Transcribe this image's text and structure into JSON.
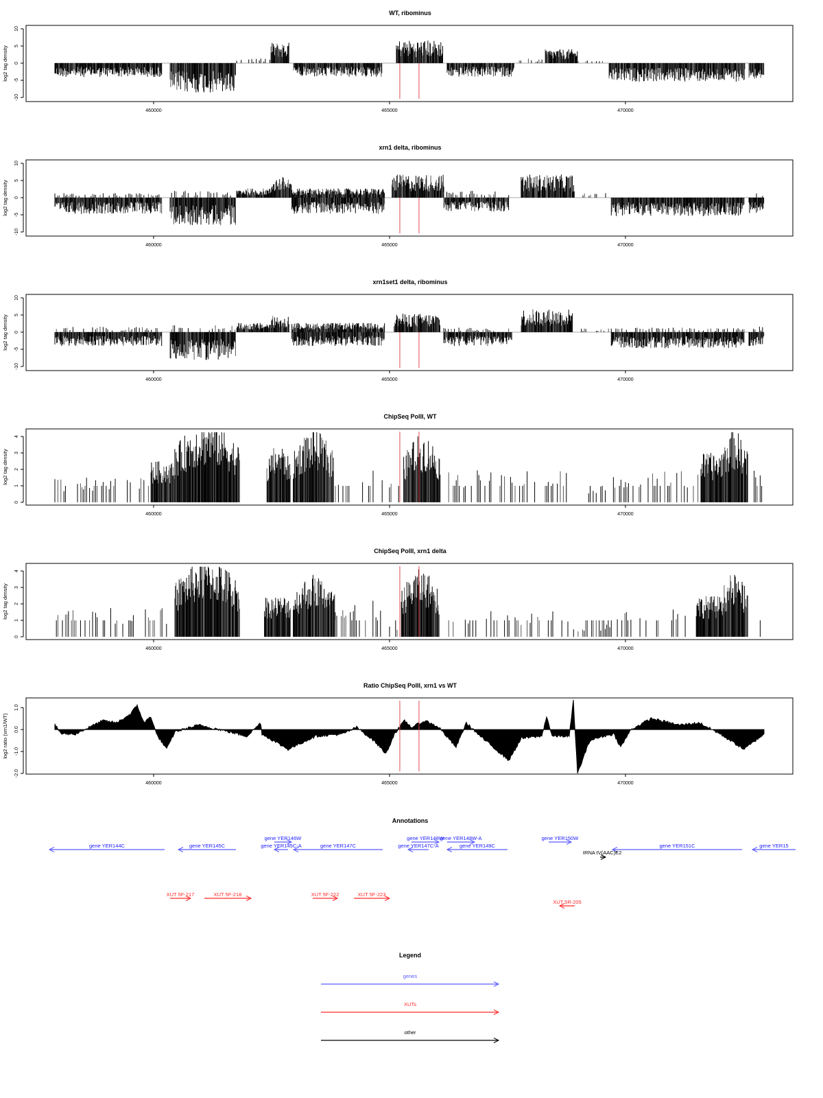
{
  "chart_data": {
    "type": "genome-browser-tracks",
    "xaxis": {
      "xlim": [
        457297,
        473547
      ],
      "ticks": [
        460000,
        465000,
        470000
      ],
      "tick_labels": [
        "460000",
        "465000",
        "470000"
      ]
    },
    "highlight_lines": {
      "positions": [
        465218,
        465625
      ],
      "color": "#e8474c"
    },
    "tracks": [
      {
        "id": "t1",
        "kind": "stranded",
        "title": "WT, ribominus",
        "ylabel": "log2 tag density",
        "ylim": [
          -11.2,
          11
        ],
        "yticks": [
          10,
          5,
          0,
          -5,
          -10
        ],
        "ytick_labels": [
          "10",
          "5",
          "0",
          "-5",
          "-10"
        ],
        "segments": [
          [
            457907,
            460175,
            -3
          ],
          [
            460349,
            461745,
            -6.5
          ],
          [
            461760,
            462485,
            1
          ],
          [
            462486,
            462878,
            4.5
          ],
          [
            462965,
            464840,
            -3
          ],
          [
            465146,
            466134,
            5
          ],
          [
            466221,
            467646,
            -3
          ],
          [
            467718,
            468300,
            1
          ],
          [
            468300,
            468983,
            3
          ],
          [
            469000,
            469600,
            0.8
          ],
          [
            469651,
            472529,
            -4
          ],
          [
            472617,
            472936,
            -3.5
          ]
        ]
      },
      {
        "id": "t2",
        "kind": "stranded",
        "title": "xrn1 delta, ribominus",
        "ylabel": "log2 tag density",
        "ylim": [
          -11.2,
          11
        ],
        "yticks": [
          10,
          5,
          0,
          -5,
          -10
        ],
        "ytick_labels": [
          "10",
          "5",
          "0",
          "-5",
          "-10"
        ],
        "segments": [
          [
            457907,
            460175,
            -3.5
          ],
          [
            457907,
            460175,
            1
          ],
          [
            460349,
            461745,
            -6
          ],
          [
            460349,
            461745,
            1.5
          ],
          [
            461760,
            462500,
            2
          ],
          [
            462500,
            462930,
            4.5
          ],
          [
            462930,
            464900,
            -3.5
          ],
          [
            462930,
            464900,
            2
          ],
          [
            465050,
            466150,
            5
          ],
          [
            466150,
            467530,
            -3
          ],
          [
            466150,
            467530,
            1.5
          ],
          [
            467790,
            468920,
            5
          ],
          [
            469100,
            469650,
            1
          ],
          [
            469700,
            472520,
            -4
          ],
          [
            472617,
            472936,
            -3.5
          ],
          [
            472617,
            472936,
            1
          ]
        ]
      },
      {
        "id": "t3",
        "kind": "stranded",
        "title": "xrn1set1 delta, ribominus",
        "ylabel": "log2 tag density",
        "ylim": [
          -11.2,
          11
        ],
        "yticks": [
          10,
          5,
          0,
          -5,
          -10
        ],
        "ytick_labels": [
          "10",
          "5",
          "0",
          "-5",
          "-10"
        ],
        "segments": [
          [
            457907,
            460175,
            -3
          ],
          [
            457907,
            460175,
            1.2
          ],
          [
            460349,
            461745,
            -6
          ],
          [
            460349,
            461745,
            1.5
          ],
          [
            461760,
            462500,
            2
          ],
          [
            462500,
            462870,
            3.5
          ],
          [
            462930,
            464900,
            -3
          ],
          [
            462930,
            464900,
            2
          ],
          [
            465100,
            466080,
            4
          ],
          [
            466150,
            467600,
            -3
          ],
          [
            466150,
            467600,
            1
          ],
          [
            467790,
            468880,
            5
          ],
          [
            469000,
            469650,
            0.8
          ],
          [
            469700,
            472520,
            -3.5
          ],
          [
            469700,
            472520,
            1
          ],
          [
            472617,
            472936,
            -3
          ],
          [
            472617,
            472936,
            1.2
          ]
        ]
      },
      {
        "id": "t4",
        "kind": "chip",
        "title": "ChipSeq PolII, WT",
        "ylabel": "log2 tag density",
        "ylim": [
          -0.17,
          4.46
        ],
        "yticks": [
          0,
          1,
          2,
          3,
          4
        ],
        "ytick_labels": [
          "0",
          "1",
          "2",
          "3",
          "4"
        ],
        "segments": [
          [
            457907,
            459942,
            1.2
          ],
          [
            459942,
            460450,
            2
          ],
          [
            460450,
            461830,
            3.6
          ],
          [
            462400,
            462900,
            2.6
          ],
          [
            462960,
            463820,
            3.2
          ],
          [
            463820,
            464870,
            1.6
          ],
          [
            465000,
            465200,
            1
          ],
          [
            465300,
            466080,
            3
          ],
          [
            466221,
            468809,
            1.6
          ],
          [
            468900,
            469600,
            0.8
          ],
          [
            469680,
            471600,
            1.6
          ],
          [
            471600,
            472000,
            2.4
          ],
          [
            472000,
            472600,
            3.2
          ],
          [
            472600,
            472936,
            1.6
          ]
        ]
      },
      {
        "id": "t5",
        "kind": "chip",
        "title": "ChipSeq PolII, xrn1 delta",
        "ylabel": "log2 tag density",
        "ylim": [
          -0.17,
          4.46
        ],
        "yticks": [
          0,
          1,
          2,
          3,
          4
        ],
        "ytick_labels": [
          "0",
          "1",
          "2",
          "3",
          "4"
        ],
        "segments": [
          [
            457907,
            460300,
            1.4
          ],
          [
            460450,
            461830,
            3.5
          ],
          [
            462350,
            462900,
            2
          ],
          [
            462960,
            463850,
            2.8
          ],
          [
            463850,
            464870,
            1.8
          ],
          [
            465000,
            465200,
            0.6
          ],
          [
            465250,
            466060,
            3
          ],
          [
            466221,
            468200,
            1.3
          ],
          [
            468300,
            468800,
            1.6
          ],
          [
            468900,
            469700,
            0.6
          ],
          [
            469700,
            471500,
            1.4
          ],
          [
            471500,
            472000,
            2
          ],
          [
            472000,
            472600,
            2.8
          ],
          [
            472600,
            472936,
            1.5
          ]
        ]
      },
      {
        "id": "t6",
        "kind": "ratio",
        "title": "Ratio ChipSeq PolII, xrn1 vs WT",
        "ylabel": "log2 ratio (xrn1/WT)",
        "ylim": [
          -2.03,
          1.44
        ],
        "yticks": [
          1,
          0,
          -1,
          -2
        ],
        "ytick_labels": [
          "1.0",
          "0.0",
          "-1.0",
          "-2.0"
        ],
        "points": [
          [
            457907,
            0.2
          ],
          [
            458053,
            -0.2
          ],
          [
            458343,
            -0.2
          ],
          [
            458634,
            0.1
          ],
          [
            458925,
            0.4
          ],
          [
            459216,
            0.3
          ],
          [
            459506,
            0.7
          ],
          [
            459652,
            1.1
          ],
          [
            459797,
            0.3
          ],
          [
            459942,
            0.6
          ],
          [
            460059,
            -0.2
          ],
          [
            460277,
            -0.9
          ],
          [
            460451,
            -0.1
          ],
          [
            460960,
            0.2
          ],
          [
            461396,
            0.0
          ],
          [
            461977,
            -0.3
          ],
          [
            462268,
            0.3
          ],
          [
            462297,
            -0.2
          ],
          [
            462849,
            -0.9
          ],
          [
            463431,
            -0.3
          ],
          [
            464012,
            -0.2
          ],
          [
            464303,
            0.1
          ],
          [
            464666,
            -0.5
          ],
          [
            464928,
            -1.1
          ],
          [
            465102,
            -0.2
          ],
          [
            465320,
            0.4
          ],
          [
            465466,
            0.1
          ],
          [
            465756,
            0.4
          ],
          [
            466047,
            0.1
          ],
          [
            466410,
            -0.8
          ],
          [
            466628,
            0.3
          ],
          [
            466919,
            -0.3
          ],
          [
            467530,
            -1.4
          ],
          [
            467791,
            -0.4
          ],
          [
            468227,
            -0.3
          ],
          [
            468329,
            0.6
          ],
          [
            468445,
            -0.3
          ],
          [
            468809,
            -0.3
          ],
          [
            468896,
            1.3
          ],
          [
            468984,
            -2.0
          ],
          [
            469245,
            -0.5
          ],
          [
            469536,
            -0.3
          ],
          [
            469754,
            -0.2
          ],
          [
            469899,
            -0.8
          ],
          [
            470117,
            0.0
          ],
          [
            470553,
            0.5
          ],
          [
            471134,
            0.2
          ],
          [
            471570,
            0.3
          ],
          [
            472006,
            -0.2
          ],
          [
            472515,
            -0.9
          ],
          [
            472936,
            -0.2
          ]
        ]
      }
    ],
    "annotations": {
      "title": "Annotations",
      "features": [
        {
          "label": "gene YER144C",
          "start": 457791,
          "end": 460233,
          "strand": "-",
          "type": "gene",
          "row": 2
        },
        {
          "label": "gene YER145C",
          "start": 460524,
          "end": 461745,
          "strand": "-",
          "type": "gene",
          "row": 2
        },
        {
          "label": "gene YER146W",
          "start": 462559,
          "end": 462922,
          "strand": "+",
          "type": "gene",
          "row": 1
        },
        {
          "label": "gene YER145C-A",
          "start": 462559,
          "end": 462849,
          "strand": "-",
          "type": "gene",
          "row": 2
        },
        {
          "label": "gene YER147C",
          "start": 462966,
          "end": 464855,
          "strand": "-",
          "type": "gene",
          "row": 2
        },
        {
          "label": "gene YER147C-A",
          "start": 465393,
          "end": 465829,
          "strand": "-",
          "type": "gene",
          "row": 2
        },
        {
          "label": "gene YER148W",
          "start": 465466,
          "end": 466047,
          "strand": "+",
          "type": "gene",
          "row": 1
        },
        {
          "label": "gene YER148W-A",
          "start": 466221,
          "end": 466802,
          "strand": "+",
          "type": "gene",
          "row": 1
        },
        {
          "label": "gene YER149C",
          "start": 466221,
          "end": 467500,
          "strand": "-",
          "type": "gene",
          "row": 2
        },
        {
          "label": "gene YER150W",
          "start": 468372,
          "end": 468852,
          "strand": "+",
          "type": "gene",
          "row": 1
        },
        {
          "label": "gene YER151C",
          "start": 469724,
          "end": 472472,
          "strand": "-",
          "type": "gene",
          "row": 2
        },
        {
          "label": "gene YER15",
          "start": 472690,
          "end": 473605,
          "strand": "-",
          "type": "gene",
          "row": 2
        },
        {
          "label": "tRNA tV(AAC)E2",
          "start": 469463,
          "end": 469579,
          "strand": "+",
          "type": "other",
          "row": 3
        },
        {
          "label": "XUT 5F-217",
          "start": 460349,
          "end": 460785,
          "strand": "+",
          "type": "xut",
          "row": 5
        },
        {
          "label": "XUT 5F-218",
          "start": 461075,
          "end": 462065,
          "strand": "+",
          "type": "xut",
          "row": 5
        },
        {
          "label": "XUT 5F-222",
          "start": 463373,
          "end": 463896,
          "strand": "+",
          "type": "xut",
          "row": 5
        },
        {
          "label": "XUT 5F-223",
          "start": 464245,
          "end": 465001,
          "strand": "+",
          "type": "xut",
          "row": 5
        },
        {
          "label": "XUT 5R-205",
          "start": 468605,
          "end": 468925,
          "strand": "-",
          "type": "xut",
          "row": 6
        }
      ]
    },
    "legend": {
      "title": "Legend",
      "entries": [
        {
          "label": "genes",
          "color": "#5a5aff"
        },
        {
          "label": "XUTs",
          "color": "#ff2a2a"
        },
        {
          "label": "other",
          "color": "#000000"
        }
      ]
    }
  },
  "colors": {
    "gene": "#5a5aff",
    "gene_text": "#1a1aff",
    "xut": "#ff2a2a",
    "other": "#000000",
    "highlight": "#e8474c",
    "baseline": "#aaaaaa"
  }
}
